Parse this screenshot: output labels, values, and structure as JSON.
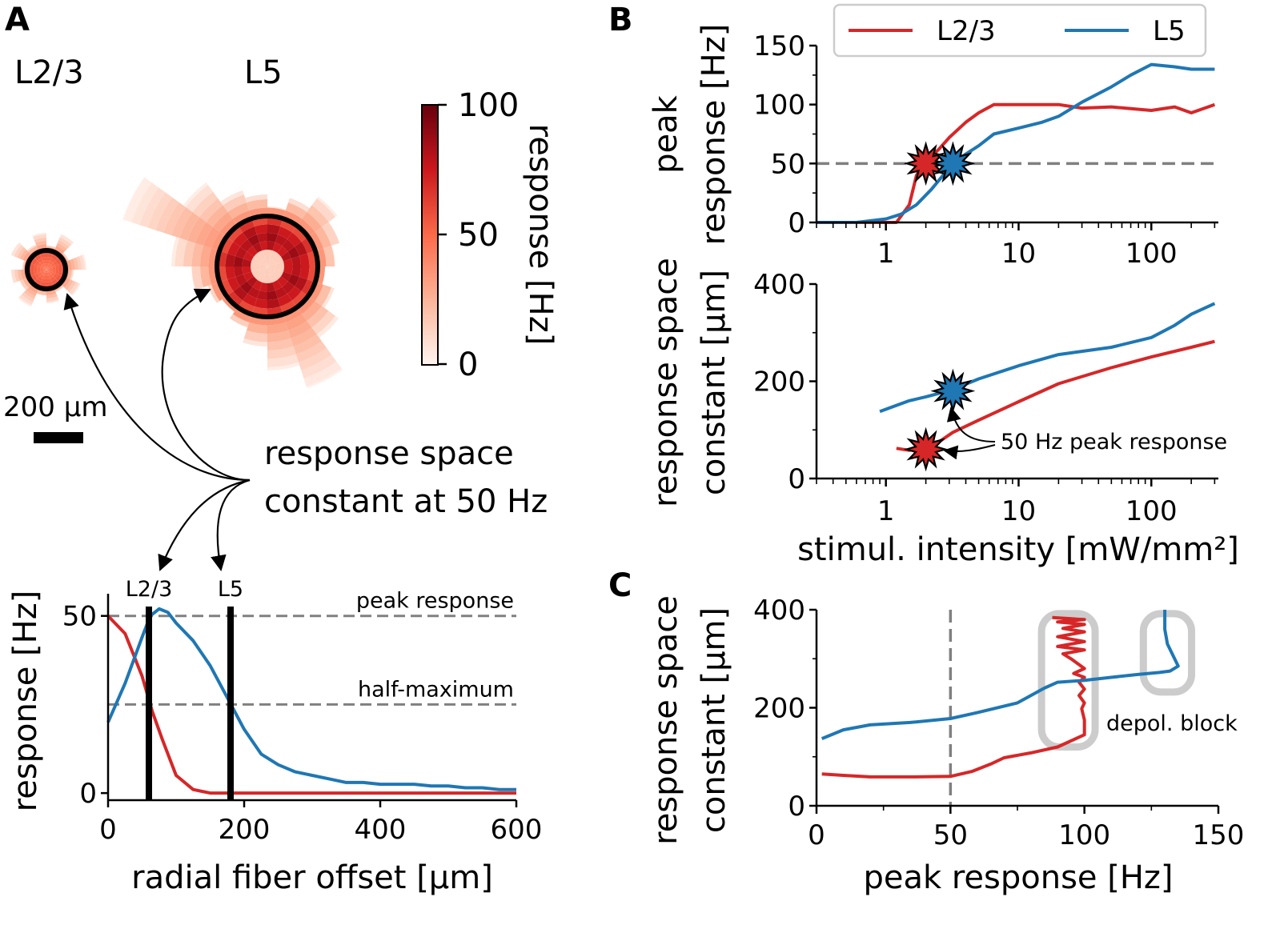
{
  "colors": {
    "l23": "#d62728",
    "l5": "#1f77b4",
    "dash": "#808080",
    "box": "#cccccc"
  },
  "panel_labels": {
    "a": "A",
    "b": "B",
    "c": "C"
  },
  "panel_a": {
    "title_l23": "L2/3",
    "title_l5": "L5",
    "scale_bar": "200 µm",
    "annotation": [
      "response space",
      "constant at 50 Hz"
    ],
    "colorbar": {
      "label": "response [Hz]",
      "ticks": [
        "0",
        "50",
        "100"
      ],
      "range": [
        0,
        100
      ]
    }
  },
  "chart_data": [
    {
      "id": "A-bottom",
      "type": "line",
      "xlabel": "radial fiber offset [µm]",
      "ylabel": "response [Hz]",
      "xlim": [
        0,
        600
      ],
      "ylim": [
        -2,
        54
      ],
      "xticks": [
        "0",
        "200",
        "400",
        "600"
      ],
      "yticks": [
        "0",
        "50"
      ],
      "hlines": [
        {
          "y": 50,
          "label": "peak response"
        },
        {
          "y": 25,
          "label": "half-maximum"
        }
      ],
      "vlines": [
        {
          "x": 60,
          "label": "L2/3"
        },
        {
          "x": 180,
          "label": "L5"
        }
      ],
      "series": [
        {
          "name": "L2/3",
          "color": "l23",
          "x": [
            0,
            25,
            50,
            65,
            80,
            100,
            125,
            150,
            175,
            200,
            300,
            400,
            500,
            600
          ],
          "y": [
            50,
            45,
            33,
            23,
            15,
            5,
            1,
            0,
            0,
            0,
            0,
            0,
            0,
            0
          ]
        },
        {
          "name": "L5",
          "color": "l5",
          "x": [
            0,
            25,
            50,
            62,
            75,
            88,
            100,
            125,
            150,
            175,
            200,
            225,
            250,
            275,
            300,
            325,
            350,
            375,
            400,
            425,
            450,
            475,
            500,
            525,
            550,
            575,
            600
          ],
          "y": [
            20,
            31,
            44,
            50,
            52,
            51,
            48,
            43,
            36,
            27,
            18,
            11,
            8,
            6,
            5,
            4,
            3,
            3,
            2.5,
            2.5,
            2.5,
            2,
            2,
            1.5,
            1.5,
            1,
            1
          ]
        }
      ]
    },
    {
      "id": "B-top",
      "type": "line",
      "xscale": "log",
      "ylabel": "peak response [Hz]",
      "xlim": [
        0.3,
        320
      ],
      "ylim": [
        0,
        150
      ],
      "xticks": [
        "1",
        "10",
        "100"
      ],
      "yticks": [
        "0",
        "50",
        "100",
        "150"
      ],
      "hline": 50,
      "legend": {
        "placement": "top",
        "entries": [
          "L2/3",
          "L5"
        ]
      },
      "series": [
        {
          "name": "L2/3",
          "color": "l23",
          "x": [
            0.3,
            1.2,
            1.5,
            1.7,
            2.0,
            2.5,
            3.0,
            4.0,
            5.0,
            6.5,
            10,
            20,
            30,
            50,
            100,
            150,
            200,
            300
          ],
          "y": [
            0,
            0,
            15,
            40,
            52,
            62,
            72,
            85,
            93,
            100,
            100,
            100,
            97,
            98,
            95,
            98,
            93,
            100
          ]
        },
        {
          "name": "L5",
          "color": "l5",
          "x": [
            0.3,
            0.6,
            1.0,
            1.3,
            1.7,
            2.2,
            3.2,
            4.0,
            5.0,
            6.5,
            10,
            15,
            20,
            30,
            50,
            70,
            100,
            150,
            200,
            300
          ],
          "y": [
            0,
            0,
            3,
            7,
            15,
            28,
            50,
            58,
            65,
            75,
            80,
            85,
            90,
            102,
            115,
            125,
            134,
            132,
            130,
            130
          ]
        }
      ],
      "markers": [
        {
          "series": "L2/3",
          "x": 2.0,
          "y": 50
        },
        {
          "series": "L5",
          "x": 3.2,
          "y": 50
        }
      ]
    },
    {
      "id": "B-bottom",
      "type": "line",
      "xscale": "log",
      "xlabel": "stimul. intensity [mW/mm²]",
      "ylabel": "response space constant [µm]",
      "xlim": [
        0.3,
        320
      ],
      "ylim": [
        0,
        400
      ],
      "xticks": [
        "1",
        "10",
        "100"
      ],
      "yticks": [
        "0",
        "200",
        "400"
      ],
      "annotation": "50 Hz peak response",
      "series": [
        {
          "name": "L2/3",
          "color": "l23",
          "x": [
            1.2,
            1.5,
            2.0,
            2.5,
            3.2,
            5,
            10,
            20,
            50,
            100,
            200,
            300
          ],
          "y": [
            62,
            58,
            62,
            75,
            95,
            120,
            158,
            195,
            228,
            250,
            270,
            282
          ]
        },
        {
          "name": "L5",
          "color": "l5",
          "x": [
            0.9,
            1.5,
            2.0,
            2.5,
            3.2,
            5,
            10,
            20,
            50,
            100,
            150,
            200,
            300
          ],
          "y": [
            138,
            160,
            168,
            175,
            183,
            205,
            232,
            255,
            270,
            290,
            315,
            338,
            360
          ]
        }
      ],
      "markers": [
        {
          "series": "L2/3",
          "x": 2.0,
          "y": 60
        },
        {
          "series": "L5",
          "x": 3.2,
          "y": 180
        }
      ]
    },
    {
      "id": "C",
      "type": "line",
      "xlabel": "peak response [Hz]",
      "ylabel": "response space constant [µm]",
      "xlim": [
        0,
        150
      ],
      "ylim": [
        0,
        400
      ],
      "xticks": [
        "0",
        "50",
        "100",
        "150"
      ],
      "yticks": [
        "0",
        "200",
        "400"
      ],
      "vline": 50,
      "annotation": "depol. block",
      "series": [
        {
          "name": "L2/3",
          "color": "l23",
          "x": [
            2,
            10,
            20,
            35,
            50,
            58,
            65,
            70,
            80,
            90,
            100,
            100,
            99,
            100,
            98,
            100,
            98,
            100,
            96,
            100,
            95,
            92,
            100,
            90,
            100,
            90,
            100,
            92,
            100,
            90,
            100,
            88
          ],
          "y": [
            65,
            62,
            59,
            59,
            60,
            70,
            85,
            98,
            108,
            120,
            145,
            175,
            198,
            210,
            225,
            238,
            252,
            262,
            270,
            280,
            300,
            310,
            318,
            325,
            335,
            345,
            355,
            362,
            370,
            375,
            380,
            384
          ]
        },
        {
          "name": "L5",
          "color": "l5",
          "x": [
            2,
            10,
            20,
            35,
            50,
            60,
            75,
            80,
            85,
            90,
            100,
            110,
            120,
            128,
            132,
            135,
            131,
            130,
            130
          ],
          "y": [
            137,
            155,
            165,
            170,
            178,
            190,
            210,
            225,
            240,
            252,
            256,
            262,
            268,
            272,
            275,
            285,
            330,
            360,
            400
          ]
        }
      ],
      "boxes": [
        {
          "x0": 84,
          "x1": 104,
          "y0": 120,
          "y1": 392
        },
        {
          "x0": 122,
          "x1": 140,
          "y0": 232,
          "y1": 392
        }
      ]
    }
  ]
}
